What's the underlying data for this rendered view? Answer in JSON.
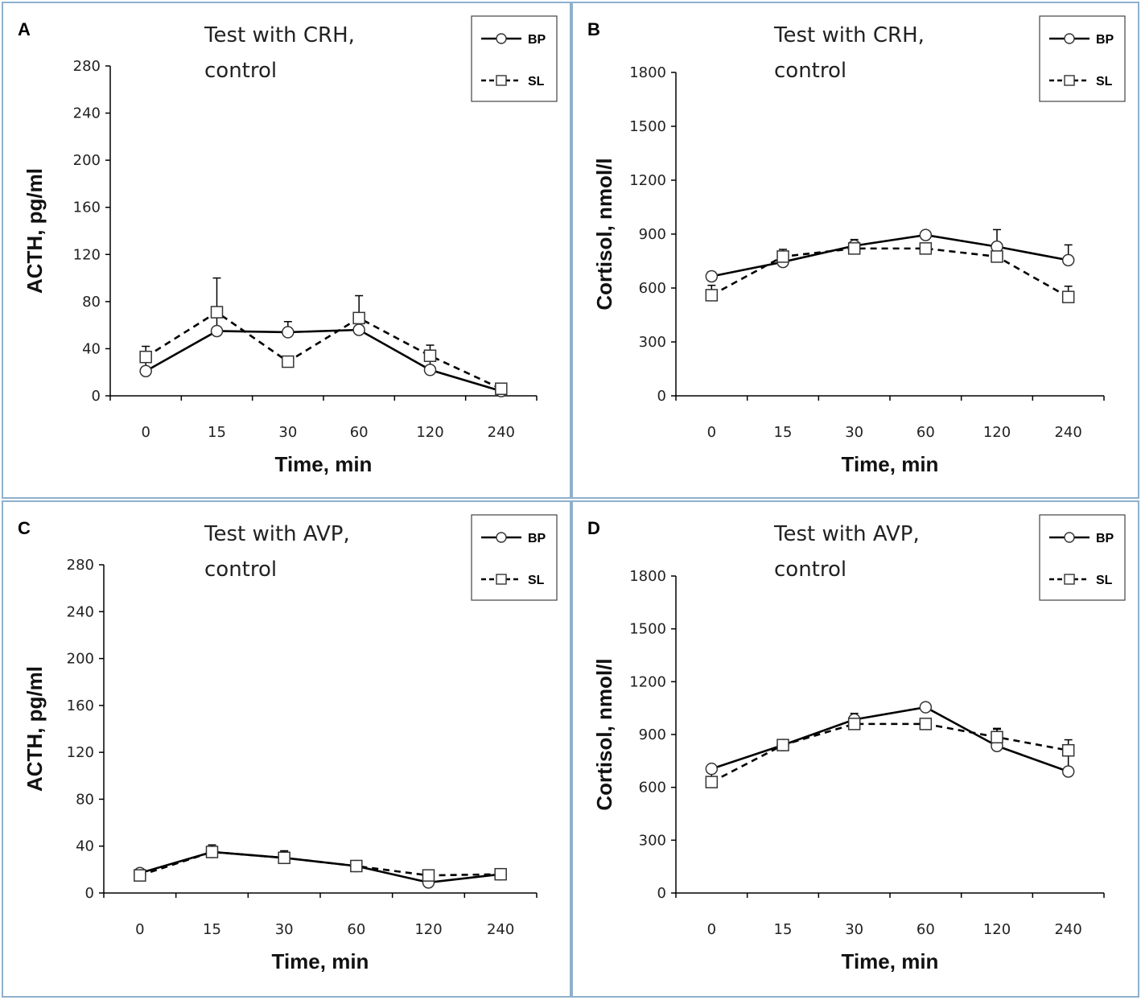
{
  "chart_data": [
    {
      "panel": "A",
      "type": "line",
      "title_lines": [
        "Test with CRH,",
        "control"
      ],
      "xlabel": "Time, min",
      "ylabel": "ACTH, pg/ml",
      "categories": [
        "0",
        "15",
        "30",
        "60",
        "120",
        "240"
      ],
      "yticks": [
        "0",
        "40",
        "80",
        "120",
        "160",
        "200",
        "240",
        "280"
      ],
      "ylim": [
        0,
        280
      ],
      "series": [
        {
          "name": "BP",
          "style": "solid",
          "marker": "circle",
          "values": [
            21,
            55,
            54,
            56,
            22,
            4
          ],
          "errors": [
            9,
            14,
            9,
            9,
            8,
            3
          ]
        },
        {
          "name": "SL",
          "style": "dashed",
          "marker": "square",
          "values": [
            33,
            71,
            29,
            66,
            34,
            6
          ],
          "errors": [
            9,
            29,
            0,
            19,
            9,
            0
          ]
        }
      ]
    },
    {
      "panel": "B",
      "type": "line",
      "title_lines": [
        "Test with CRH,",
        "control"
      ],
      "xlabel": "Time, min",
      "ylabel": "Cortisol, nmol/l",
      "categories": [
        "0",
        "15",
        "30",
        "60",
        "120",
        "240"
      ],
      "yticks": [
        "0",
        "300",
        "600",
        "900",
        "1200",
        "1500",
        "1800"
      ],
      "ylim": [
        0,
        1800
      ],
      "series": [
        {
          "name": "BP",
          "style": "solid",
          "marker": "circle",
          "values": [
            665,
            745,
            835,
            895,
            830,
            755
          ],
          "errors": [
            25,
            30,
            35,
            20,
            95,
            85
          ]
        },
        {
          "name": "SL",
          "style": "dashed",
          "marker": "square",
          "values": [
            560,
            775,
            820,
            820,
            775,
            550
          ],
          "errors": [
            55,
            40,
            40,
            25,
            45,
            60
          ]
        }
      ]
    },
    {
      "panel": "C",
      "type": "line",
      "title_lines": [
        "Test with AVP,",
        "control"
      ],
      "xlabel": "Time, min",
      "ylabel": "ACTH, pg/ml",
      "categories": [
        "0",
        "15",
        "30",
        "60",
        "120",
        "240"
      ],
      "yticks": [
        "0",
        "40",
        "80",
        "120",
        "160",
        "200",
        "240",
        "280"
      ],
      "ylim": [
        0,
        280
      ],
      "series": [
        {
          "name": "BP",
          "style": "solid",
          "marker": "circle",
          "values": [
            17,
            35,
            30,
            23,
            9,
            16
          ],
          "errors": [
            3,
            4,
            5,
            3,
            2,
            3
          ]
        },
        {
          "name": "SL",
          "style": "dashed",
          "marker": "square",
          "values": [
            15,
            35,
            30,
            23,
            15,
            16
          ],
          "errors": [
            3,
            6,
            6,
            3,
            3,
            3
          ]
        }
      ]
    },
    {
      "panel": "D",
      "type": "line",
      "title_lines": [
        "Test with AVP,",
        "control"
      ],
      "xlabel": "Time, min",
      "ylabel": "Cortisol, nmol/l",
      "categories": [
        "0",
        "15",
        "30",
        "60",
        "120",
        "240"
      ],
      "yticks": [
        "0",
        "300",
        "600",
        "900",
        "1200",
        "1500",
        "1800"
      ],
      "ylim": [
        0,
        1800
      ],
      "series": [
        {
          "name": "BP",
          "style": "solid",
          "marker": "circle",
          "values": [
            705,
            840,
            985,
            1055,
            835,
            690
          ],
          "errors": [
            20,
            25,
            35,
            15,
            95,
            95
          ]
        },
        {
          "name": "SL",
          "style": "dashed",
          "marker": "square",
          "values": [
            630,
            840,
            960,
            960,
            885,
            810
          ],
          "errors": [
            55,
            30,
            40,
            20,
            50,
            60
          ]
        }
      ]
    }
  ]
}
